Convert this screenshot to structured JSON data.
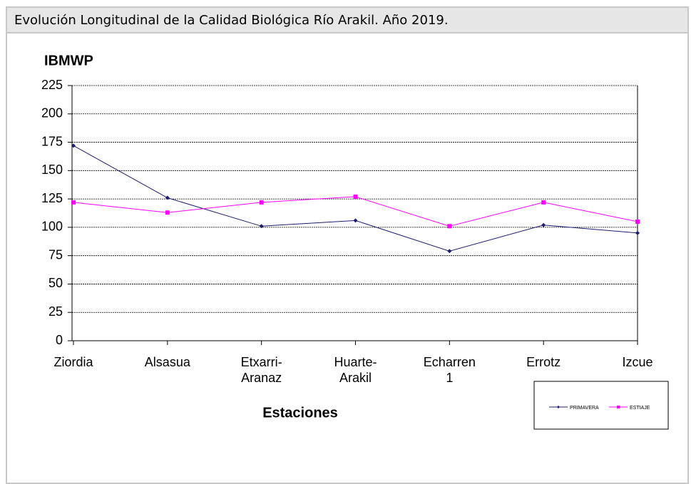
{
  "chart_data": {
    "type": "line",
    "title": "Evolución Longitudinal de la Calidad Biológica Río Arakil. Año 2019.",
    "y_label": "IBMWP",
    "x_label": "Estaciones",
    "categories": [
      "Ziordia",
      "Alsasua",
      "Etxarri-\nAranaz",
      "Huarte-\nArakil",
      "Echarren\n1",
      "Errotz",
      "Izcue"
    ],
    "series": [
      {
        "name": "PRIMAVERA",
        "color": "#1c1c70",
        "values": [
          172,
          126,
          101,
          106,
          79,
          102,
          95
        ]
      },
      {
        "name": "ESTIAJE",
        "color": "#ff00ff",
        "values": [
          122,
          113,
          122,
          127,
          101,
          122,
          105
        ]
      }
    ],
    "ylim": [
      0,
      225
    ],
    "yticks": [
      0,
      25,
      50,
      75,
      100,
      125,
      150,
      175,
      200,
      225
    ],
    "grid": true
  }
}
